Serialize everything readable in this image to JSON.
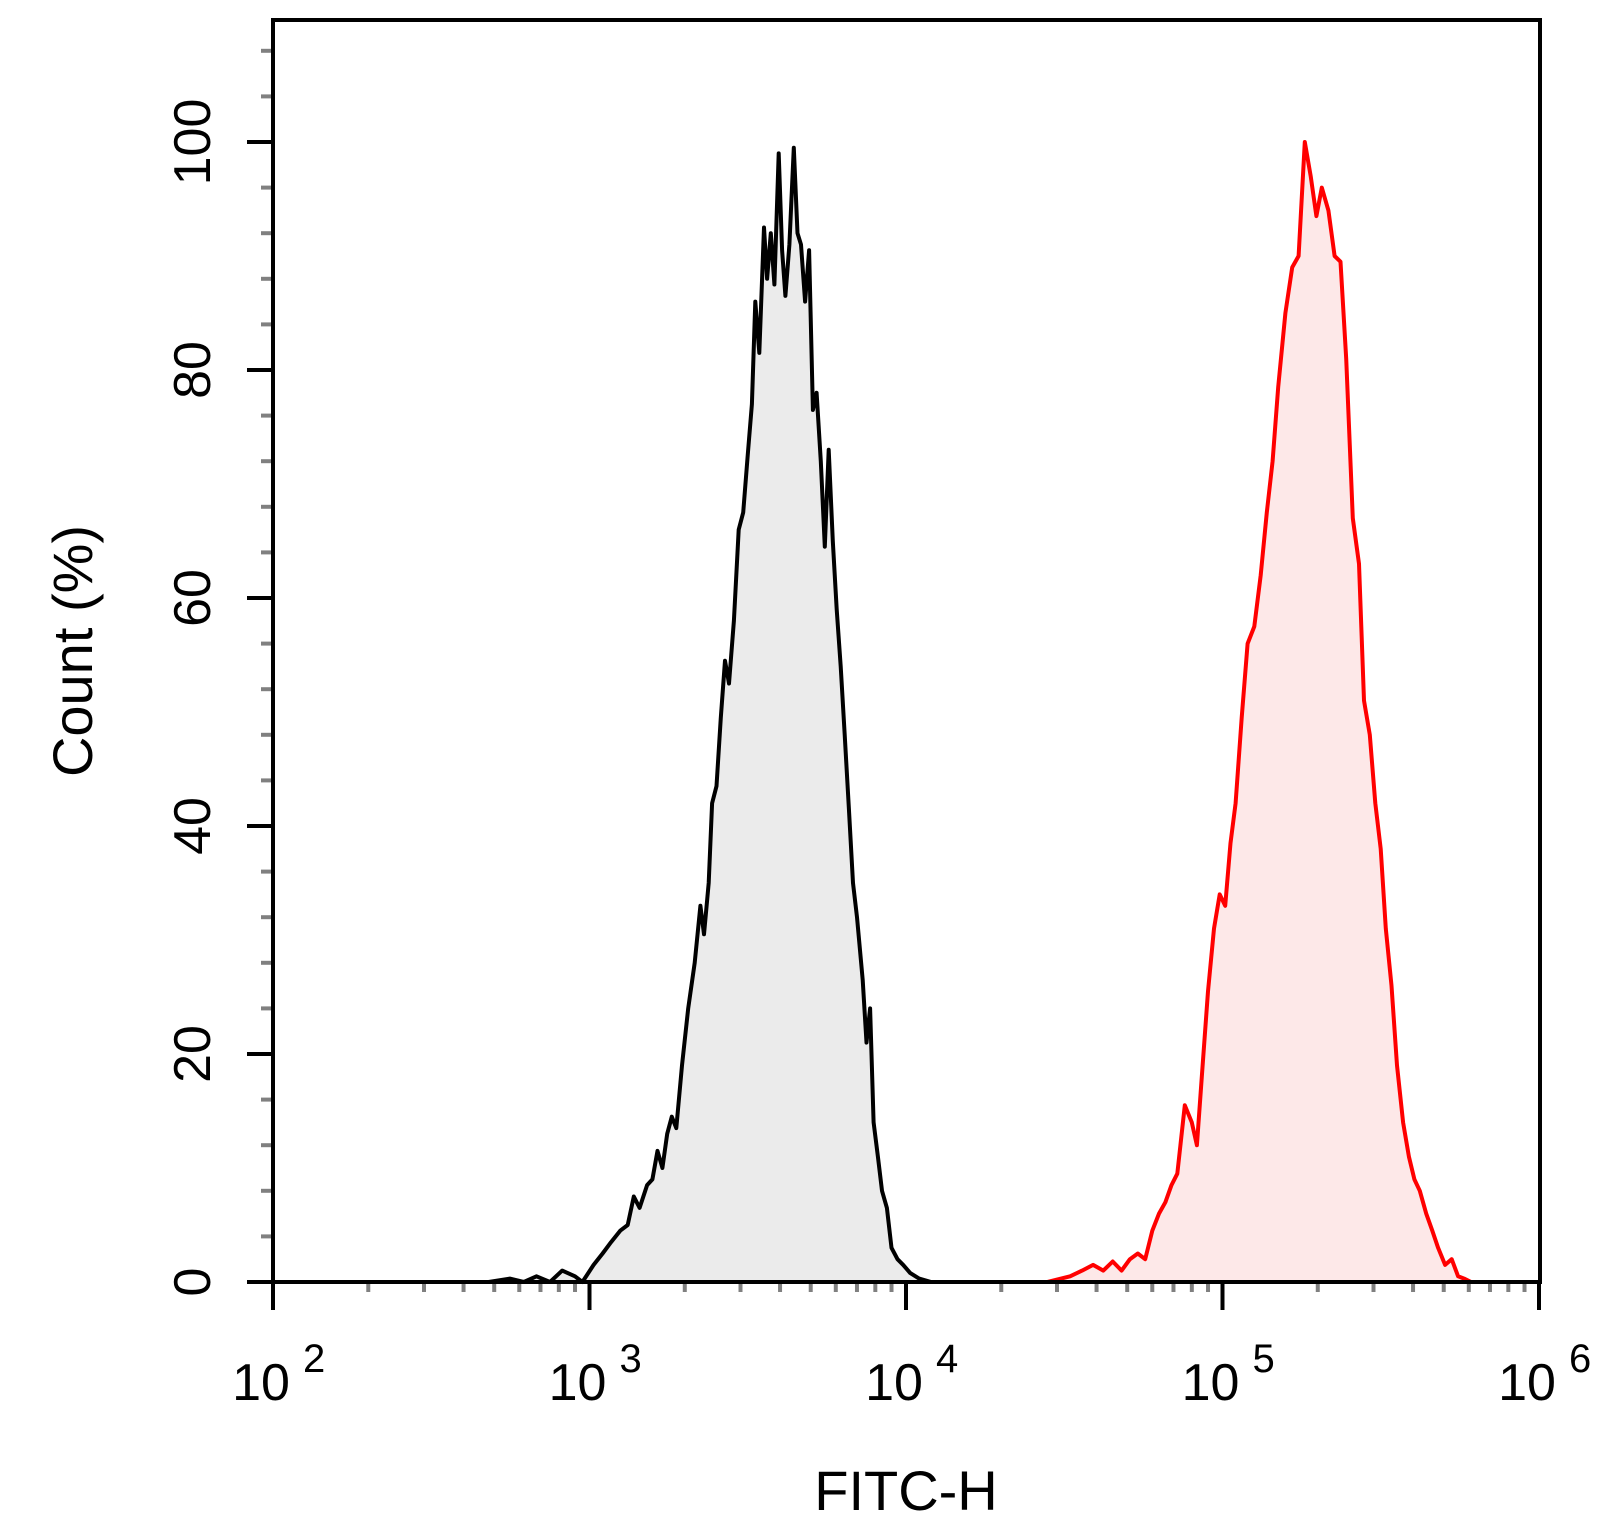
{
  "chart_data": {
    "type": "area",
    "title": "",
    "xlabel": "FITC-H",
    "ylabel": "Count (%)",
    "x_scale": "log",
    "xlim": [
      100,
      1100000
    ],
    "ylim": [
      0,
      110
    ],
    "x_ticks": [
      {
        "value": 100,
        "base": "10",
        "exp": "2"
      },
      {
        "value": 1000,
        "base": "10",
        "exp": "3"
      },
      {
        "value": 10000,
        "base": "10",
        "exp": "4"
      },
      {
        "value": 100000,
        "base": "10",
        "exp": "5"
      },
      {
        "value": 1000000,
        "base": "10",
        "exp": "6"
      }
    ],
    "y_ticks": [
      0,
      20,
      40,
      60,
      80,
      100
    ],
    "grid": false,
    "legend": "none",
    "series": [
      {
        "color": "#000000",
        "fill": "#ebebeb",
        "points": [
          [
            480,
            0
          ],
          [
            560,
            0.3
          ],
          [
            620,
            0
          ],
          [
            680,
            0.5
          ],
          [
            750,
            0
          ],
          [
            820,
            1
          ],
          [
            900,
            0.5
          ],
          [
            950,
            0
          ],
          [
            1030,
            1.5
          ],
          [
            1100,
            2.5
          ],
          [
            1170,
            3.5
          ],
          [
            1250,
            4.5
          ],
          [
            1320,
            5
          ],
          [
            1380,
            7.5
          ],
          [
            1440,
            6.5
          ],
          [
            1520,
            8.5
          ],
          [
            1580,
            9
          ],
          [
            1640,
            11.5
          ],
          [
            1700,
            10
          ],
          [
            1760,
            13
          ],
          [
            1820,
            14.5
          ],
          [
            1880,
            13.5
          ],
          [
            1960,
            19
          ],
          [
            2050,
            24
          ],
          [
            2150,
            28
          ],
          [
            2240,
            33
          ],
          [
            2300,
            30.5
          ],
          [
            2380,
            35
          ],
          [
            2440,
            42
          ],
          [
            2520,
            43.5
          ],
          [
            2600,
            49.5
          ],
          [
            2680,
            54.5
          ],
          [
            2760,
            52.5
          ],
          [
            2860,
            58
          ],
          [
            2960,
            66
          ],
          [
            3060,
            67.5
          ],
          [
            3160,
            72.5
          ],
          [
            3260,
            77
          ],
          [
            3340,
            86
          ],
          [
            3440,
            81.5
          ],
          [
            3560,
            92.5
          ],
          [
            3640,
            88
          ],
          [
            3740,
            92
          ],
          [
            3840,
            87.5
          ],
          [
            3960,
            99
          ],
          [
            4060,
            90.5
          ],
          [
            4160,
            86.5
          ],
          [
            4280,
            91
          ],
          [
            4420,
            99.5
          ],
          [
            4540,
            92
          ],
          [
            4660,
            91
          ],
          [
            4800,
            86
          ],
          [
            4940,
            90.5
          ],
          [
            5080,
            76.5
          ],
          [
            5220,
            78
          ],
          [
            5380,
            72
          ],
          [
            5540,
            64.5
          ],
          [
            5700,
            73
          ],
          [
            5870,
            65
          ],
          [
            6040,
            59
          ],
          [
            6220,
            54
          ],
          [
            6400,
            48
          ],
          [
            6600,
            41.5
          ],
          [
            6800,
            35
          ],
          [
            7000,
            32
          ],
          [
            7300,
            26.5
          ],
          [
            7500,
            21
          ],
          [
            7700,
            24
          ],
          [
            7900,
            14
          ],
          [
            8150,
            11
          ],
          [
            8400,
            8
          ],
          [
            8700,
            6.5
          ],
          [
            9000,
            3
          ],
          [
            9400,
            2
          ],
          [
            9800,
            1.5
          ],
          [
            10300,
            0.8
          ],
          [
            11000,
            0.3
          ],
          [
            12000,
            0
          ],
          [
            14000,
            0
          ]
        ]
      },
      {
        "color": "#ff0000",
        "fill": "#fde8e8",
        "points": [
          [
            28000,
            0
          ],
          [
            33000,
            0.5
          ],
          [
            36000,
            1
          ],
          [
            39000,
            1.5
          ],
          [
            42000,
            1
          ],
          [
            45000,
            1.8
          ],
          [
            48000,
            1
          ],
          [
            51000,
            2
          ],
          [
            54000,
            2.5
          ],
          [
            57000,
            2
          ],
          [
            60000,
            4.5
          ],
          [
            63000,
            6
          ],
          [
            66000,
            7
          ],
          [
            69000,
            8.5
          ],
          [
            72000,
            9.5
          ],
          [
            76000,
            15.5
          ],
          [
            80000,
            14
          ],
          [
            83000,
            12
          ],
          [
            86000,
            18
          ],
          [
            90000,
            25.5
          ],
          [
            94000,
            31
          ],
          [
            98000,
            34
          ],
          [
            102000,
            33
          ],
          [
            106000,
            38.5
          ],
          [
            110000,
            42
          ],
          [
            115000,
            49.5
          ],
          [
            120000,
            56
          ],
          [
            126000,
            57.5
          ],
          [
            132000,
            62
          ],
          [
            138000,
            67.5
          ],
          [
            144000,
            72
          ],
          [
            150000,
            78.5
          ],
          [
            158000,
            85
          ],
          [
            166000,
            89
          ],
          [
            174000,
            90
          ],
          [
            182000,
            100
          ],
          [
            190000,
            97
          ],
          [
            198000,
            93.5
          ],
          [
            206000,
            96
          ],
          [
            216000,
            94
          ],
          [
            226000,
            90
          ],
          [
            236000,
            89.5
          ],
          [
            246000,
            81
          ],
          [
            258000,
            67
          ],
          [
            270000,
            63
          ],
          [
            280000,
            51
          ],
          [
            292000,
            48
          ],
          [
            304000,
            42
          ],
          [
            316000,
            38
          ],
          [
            328000,
            31
          ],
          [
            342000,
            26
          ],
          [
            356000,
            19
          ],
          [
            372000,
            14
          ],
          [
            388000,
            11
          ],
          [
            404000,
            9
          ],
          [
            420000,
            8
          ],
          [
            440000,
            6
          ],
          [
            460000,
            4.5
          ],
          [
            480000,
            3
          ],
          [
            505000,
            1.5
          ],
          [
            530000,
            2
          ],
          [
            555000,
            0.5
          ],
          [
            580000,
            0.3
          ],
          [
            610000,
            0
          ],
          [
            700000,
            0
          ]
        ]
      }
    ]
  }
}
